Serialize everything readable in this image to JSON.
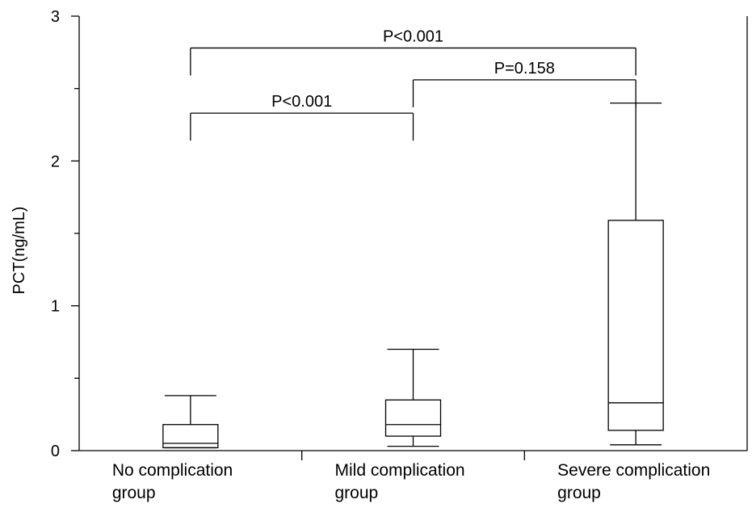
{
  "chart_data": {
    "type": "box",
    "title": "",
    "xlabel": "",
    "ylabel": "PCT(ng/mL)",
    "ylim": [
      0,
      3
    ],
    "yticks": [
      "0",
      "1",
      "2",
      "3"
    ],
    "categories": [
      [
        "No complication",
        "group"
      ],
      [
        "Mild complication",
        "group"
      ],
      [
        "Severe complication",
        "group"
      ]
    ],
    "boxes": [
      {
        "whisker_low": 0.02,
        "q1": 0.02,
        "median": 0.05,
        "q3": 0.18,
        "whisker_high": 0.38
      },
      {
        "whisker_low": 0.03,
        "q1": 0.1,
        "median": 0.18,
        "q3": 0.35,
        "whisker_high": 0.7
      },
      {
        "whisker_low": 0.04,
        "q1": 0.14,
        "median": 0.33,
        "q3": 1.59,
        "whisker_high": 2.4
      }
    ],
    "comparisons": [
      {
        "from": 0,
        "to": 1,
        "label": "P<0.001",
        "y": 2.33
      },
      {
        "from": 1,
        "to": 2,
        "label": "P=0.158",
        "y": 2.56
      },
      {
        "from": 0,
        "to": 2,
        "label": "P<0.001",
        "y": 2.78
      }
    ],
    "grid": false,
    "legend": "none"
  }
}
